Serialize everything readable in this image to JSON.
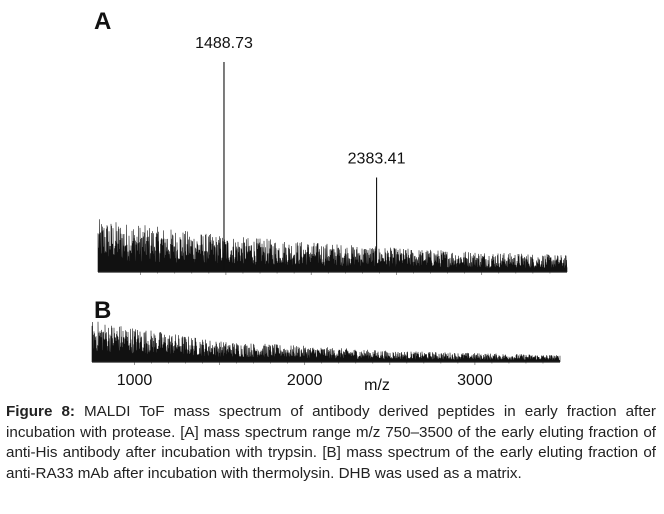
{
  "figure": {
    "label": "Figure 8:",
    "caption_text": "MALDI ToF mass spectrum of antibody derived peptides in early fraction after incubation with protease. [A] mass spectrum range m/z 750–3500 of the early eluting fraction of anti-His antibody after incubation with trypsin. [B] mass spectrum of the early eluting fraction of anti-RA33 mAb after incubation with thermolysin. DHB was used as a matrix."
  },
  "chart_data": [
    {
      "type": "line",
      "panel": "A",
      "xlim": [
        750,
        3500
      ],
      "peaks": [
        {
          "label": "1488.73",
          "x": 1488.73,
          "y": 1.0
        },
        {
          "label": "2383.41",
          "x": 2383.41,
          "y": 0.45
        }
      ],
      "baseline_level": [
        {
          "x": 750,
          "y": 0.22
        },
        {
          "x": 1500,
          "y": 0.15
        },
        {
          "x": 2500,
          "y": 0.1
        },
        {
          "x": 3500,
          "y": 0.07
        }
      ]
    },
    {
      "type": "line",
      "panel": "B",
      "xlim": [
        750,
        3500
      ],
      "baseline_level": [
        {
          "x": 750,
          "y": 0.3
        },
        {
          "x": 1500,
          "y": 0.15
        },
        {
          "x": 2500,
          "y": 0.08
        },
        {
          "x": 3500,
          "y": 0.05
        }
      ]
    }
  ],
  "x_axis": {
    "label": "m/z",
    "ticks": [
      {
        "value": 1000,
        "label": "1000"
      },
      {
        "value": 2000,
        "label": "2000"
      },
      {
        "value": 3000,
        "label": "3000"
      }
    ]
  }
}
